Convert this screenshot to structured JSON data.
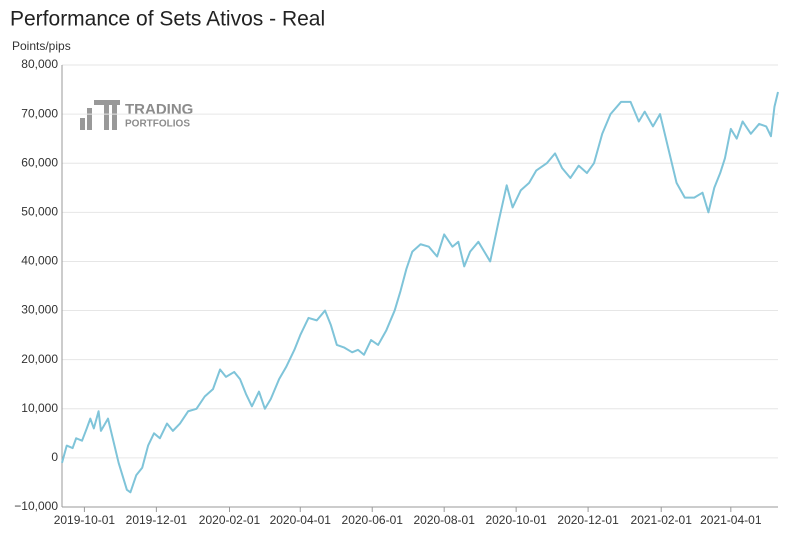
{
  "chart_data": {
    "type": "line",
    "title": "Performance of Sets Ativos - Real",
    "y_label": "Points/pips",
    "watermark": [
      "TRADING",
      "PORTFOLIOS"
    ],
    "x": [
      "2019-09-12",
      "2019-09-16",
      "2019-09-21",
      "2019-09-24",
      "2019-09-29",
      "2019-10-03",
      "2019-10-06",
      "2019-10-09",
      "2019-10-13",
      "2019-10-15",
      "2019-10-21",
      "2019-10-25",
      "2019-10-30",
      "2019-11-06",
      "2019-11-09",
      "2019-11-14",
      "2019-11-19",
      "2019-11-24",
      "2019-11-29",
      "2019-12-04",
      "2019-12-10",
      "2019-12-15",
      "2019-12-21",
      "2019-12-28",
      "2020-01-04",
      "2020-01-11",
      "2020-01-18",
      "2020-01-24",
      "2020-01-29",
      "2020-02-05",
      "2020-02-10",
      "2020-02-15",
      "2020-02-20",
      "2020-02-26",
      "2020-03-02",
      "2020-03-07",
      "2020-03-14",
      "2020-03-20",
      "2020-03-27",
      "2020-04-01",
      "2020-04-08",
      "2020-04-15",
      "2020-04-22",
      "2020-04-27",
      "2020-05-02",
      "2020-05-08",
      "2020-05-15",
      "2020-05-20",
      "2020-05-25",
      "2020-05-31",
      "2020-06-06",
      "2020-06-13",
      "2020-06-20",
      "2020-06-25",
      "2020-06-30",
      "2020-07-05",
      "2020-07-12",
      "2020-07-19",
      "2020-07-26",
      "2020-08-01",
      "2020-08-08",
      "2020-08-13",
      "2020-08-18",
      "2020-08-23",
      "2020-08-30",
      "2020-09-04",
      "2020-09-09",
      "2020-09-16",
      "2020-09-23",
      "2020-09-28",
      "2020-10-05",
      "2020-10-12",
      "2020-10-18",
      "2020-10-27",
      "2020-11-03",
      "2020-11-09",
      "2020-11-16",
      "2020-11-23",
      "2020-11-30",
      "2020-12-06",
      "2020-12-13",
      "2020-12-20",
      "2020-12-29",
      "2021-01-06",
      "2021-01-13",
      "2021-01-18",
      "2021-01-25",
      "2021-01-31",
      "2021-02-07",
      "2021-02-14",
      "2021-02-21",
      "2021-03-01",
      "2021-03-08",
      "2021-03-13",
      "2021-03-18",
      "2021-03-23",
      "2021-03-27",
      "2021-04-01",
      "2021-04-06",
      "2021-04-11",
      "2021-04-18",
      "2021-04-25",
      "2021-05-01",
      "2021-05-05",
      "2021-05-08",
      "2021-05-11"
    ],
    "series": [
      {
        "color": "#7fc4d9",
        "values": [
          -1000,
          2500,
          2000,
          4000,
          3500,
          6000,
          8000,
          6000,
          9500,
          5500,
          8000,
          4000,
          -1000,
          -6500,
          -7000,
          -3500,
          -2000,
          2500,
          5000,
          4000,
          7000,
          5500,
          7000,
          9500,
          10000,
          12500,
          14000,
          18000,
          16500,
          17500,
          16000,
          13000,
          10500,
          13500,
          10000,
          12000,
          16000,
          18500,
          22000,
          25000,
          28500,
          28000,
          30000,
          27000,
          23000,
          22500,
          21500,
          22000,
          21000,
          24000,
          23000,
          26000,
          30000,
          34000,
          38500,
          42000,
          43500,
          43000,
          41000,
          45500,
          43000,
          44000,
          39000,
          42000,
          44000,
          42000,
          40000,
          48000,
          55500,
          51000,
          54500,
          56000,
          58500,
          60000,
          62000,
          59000,
          57000,
          59500,
          58000,
          60000,
          66000,
          70000,
          72500,
          72500,
          68500,
          70500,
          67500,
          70000,
          63000,
          56000,
          53000,
          53000,
          54000,
          50000,
          55000,
          58000,
          61000,
          67000,
          65000,
          68500,
          66000,
          68000,
          67500,
          65500,
          71500,
          74500
        ]
      }
    ],
    "xlim": [
      "2019-09-12",
      "2021-05-11"
    ],
    "xticks": [
      "2019-10-01",
      "2019-12-01",
      "2020-02-01",
      "2020-04-01",
      "2020-06-01",
      "2020-08-01",
      "2020-10-01",
      "2020-12-01",
      "2021-02-01",
      "2021-04-01"
    ],
    "ylim": [
      -10000,
      80000
    ],
    "yticks": [
      {
        "value": -10000,
        "label": "−10,000"
      },
      0,
      {
        "value": 10000,
        "label": "10,000"
      },
      {
        "value": 20000,
        "label": "20,000"
      },
      {
        "value": 30000,
        "label": "30,000"
      },
      {
        "value": 40000,
        "label": "40,000"
      },
      {
        "value": 50000,
        "label": "50,000"
      },
      {
        "value": 60000,
        "label": "60,000"
      },
      {
        "value": 70000,
        "label": "70,000"
      },
      {
        "value": 80000,
        "label": "80,000"
      }
    ],
    "grid": true
  }
}
